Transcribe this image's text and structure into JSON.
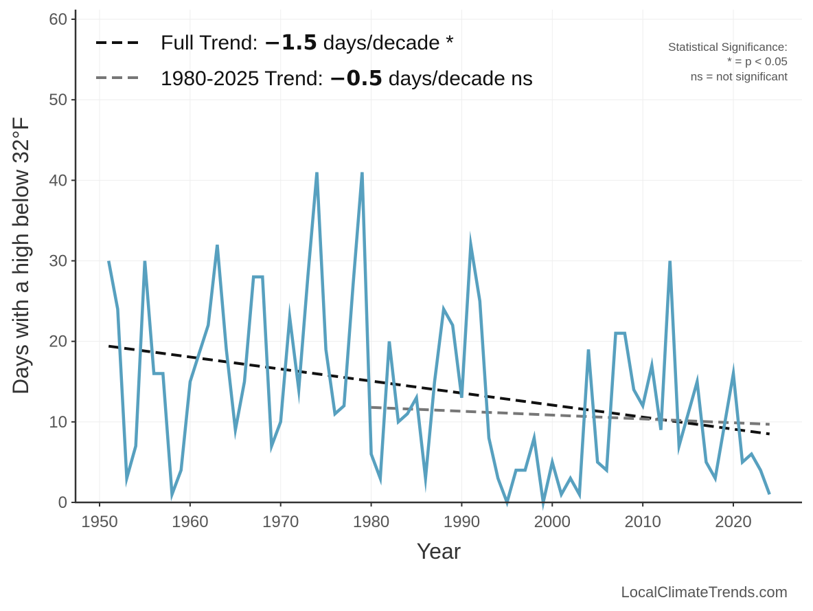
{
  "chart_data": {
    "type": "line",
    "xlabel": "Year",
    "ylabel": "Days with a high below 32°F",
    "xlim": [
      1947,
      2028
    ],
    "ylim": [
      0,
      61
    ],
    "xticks": [
      1950,
      1960,
      1970,
      1980,
      1990,
      2000,
      2010,
      2020
    ],
    "yticks": [
      0,
      10,
      20,
      30,
      40,
      50,
      60
    ],
    "grid": true,
    "series": [
      {
        "name": "Days below 32°F",
        "color": "#57a0bf",
        "x": [
          1951,
          1952,
          1953,
          1954,
          1955,
          1956,
          1957,
          1958,
          1959,
          1960,
          1961,
          1962,
          1963,
          1964,
          1965,
          1966,
          1967,
          1968,
          1969,
          1970,
          1971,
          1972,
          1973,
          1974,
          1975,
          1976,
          1977,
          1978,
          1979,
          1980,
          1981,
          1982,
          1983,
          1984,
          1985,
          1986,
          1987,
          1988,
          1989,
          1990,
          1991,
          1992,
          1993,
          1994,
          1995,
          1996,
          1997,
          1998,
          1999,
          2000,
          2001,
          2002,
          2003,
          2004,
          2005,
          2006,
          2007,
          2008,
          2009,
          2010,
          2011,
          2012,
          2013,
          2014,
          2015,
          2016,
          2017,
          2018,
          2019,
          2020,
          2021,
          2022,
          2023,
          2024
        ],
        "values": [
          30,
          24,
          3,
          7,
          30,
          16,
          16,
          1,
          4,
          15,
          18.5,
          22,
          32,
          19,
          9,
          15,
          28,
          28,
          7,
          10,
          23,
          14,
          28,
          41,
          19,
          11,
          12,
          27,
          41,
          6,
          3,
          20,
          10,
          11,
          13,
          3,
          15,
          24,
          22,
          13,
          32,
          25,
          8,
          3,
          0,
          4,
          4,
          8,
          0,
          5,
          1,
          3,
          1,
          19,
          5,
          4,
          21,
          21,
          14,
          12,
          17,
          9,
          30,
          7,
          11,
          15,
          5,
          3,
          9.5,
          16,
          5,
          6,
          4,
          1
        ]
      }
    ],
    "trends": [
      {
        "name": "Full Trend",
        "color": "#111111",
        "x": [
          1951,
          2024
        ],
        "values": [
          19.4,
          8.5
        ]
      },
      {
        "name": "1980-2025 Trend",
        "color": "#777777",
        "x": [
          1980,
          2024
        ],
        "values": [
          11.8,
          9.7
        ]
      }
    ],
    "legend": {
      "placement": "top-left",
      "entries": [
        {
          "prefix": "Full Trend: ",
          "value": "−1.5",
          "suffix": " days/decade *"
        },
        {
          "prefix": "1980-2025 Trend: ",
          "value": "−0.5",
          "suffix": " days/decade ns"
        }
      ]
    },
    "annotations": {
      "significance": [
        "Statistical Significance:",
        "* = p < 0.05",
        "ns = not significant"
      ],
      "credit": "LocalClimateTrends.com"
    }
  }
}
